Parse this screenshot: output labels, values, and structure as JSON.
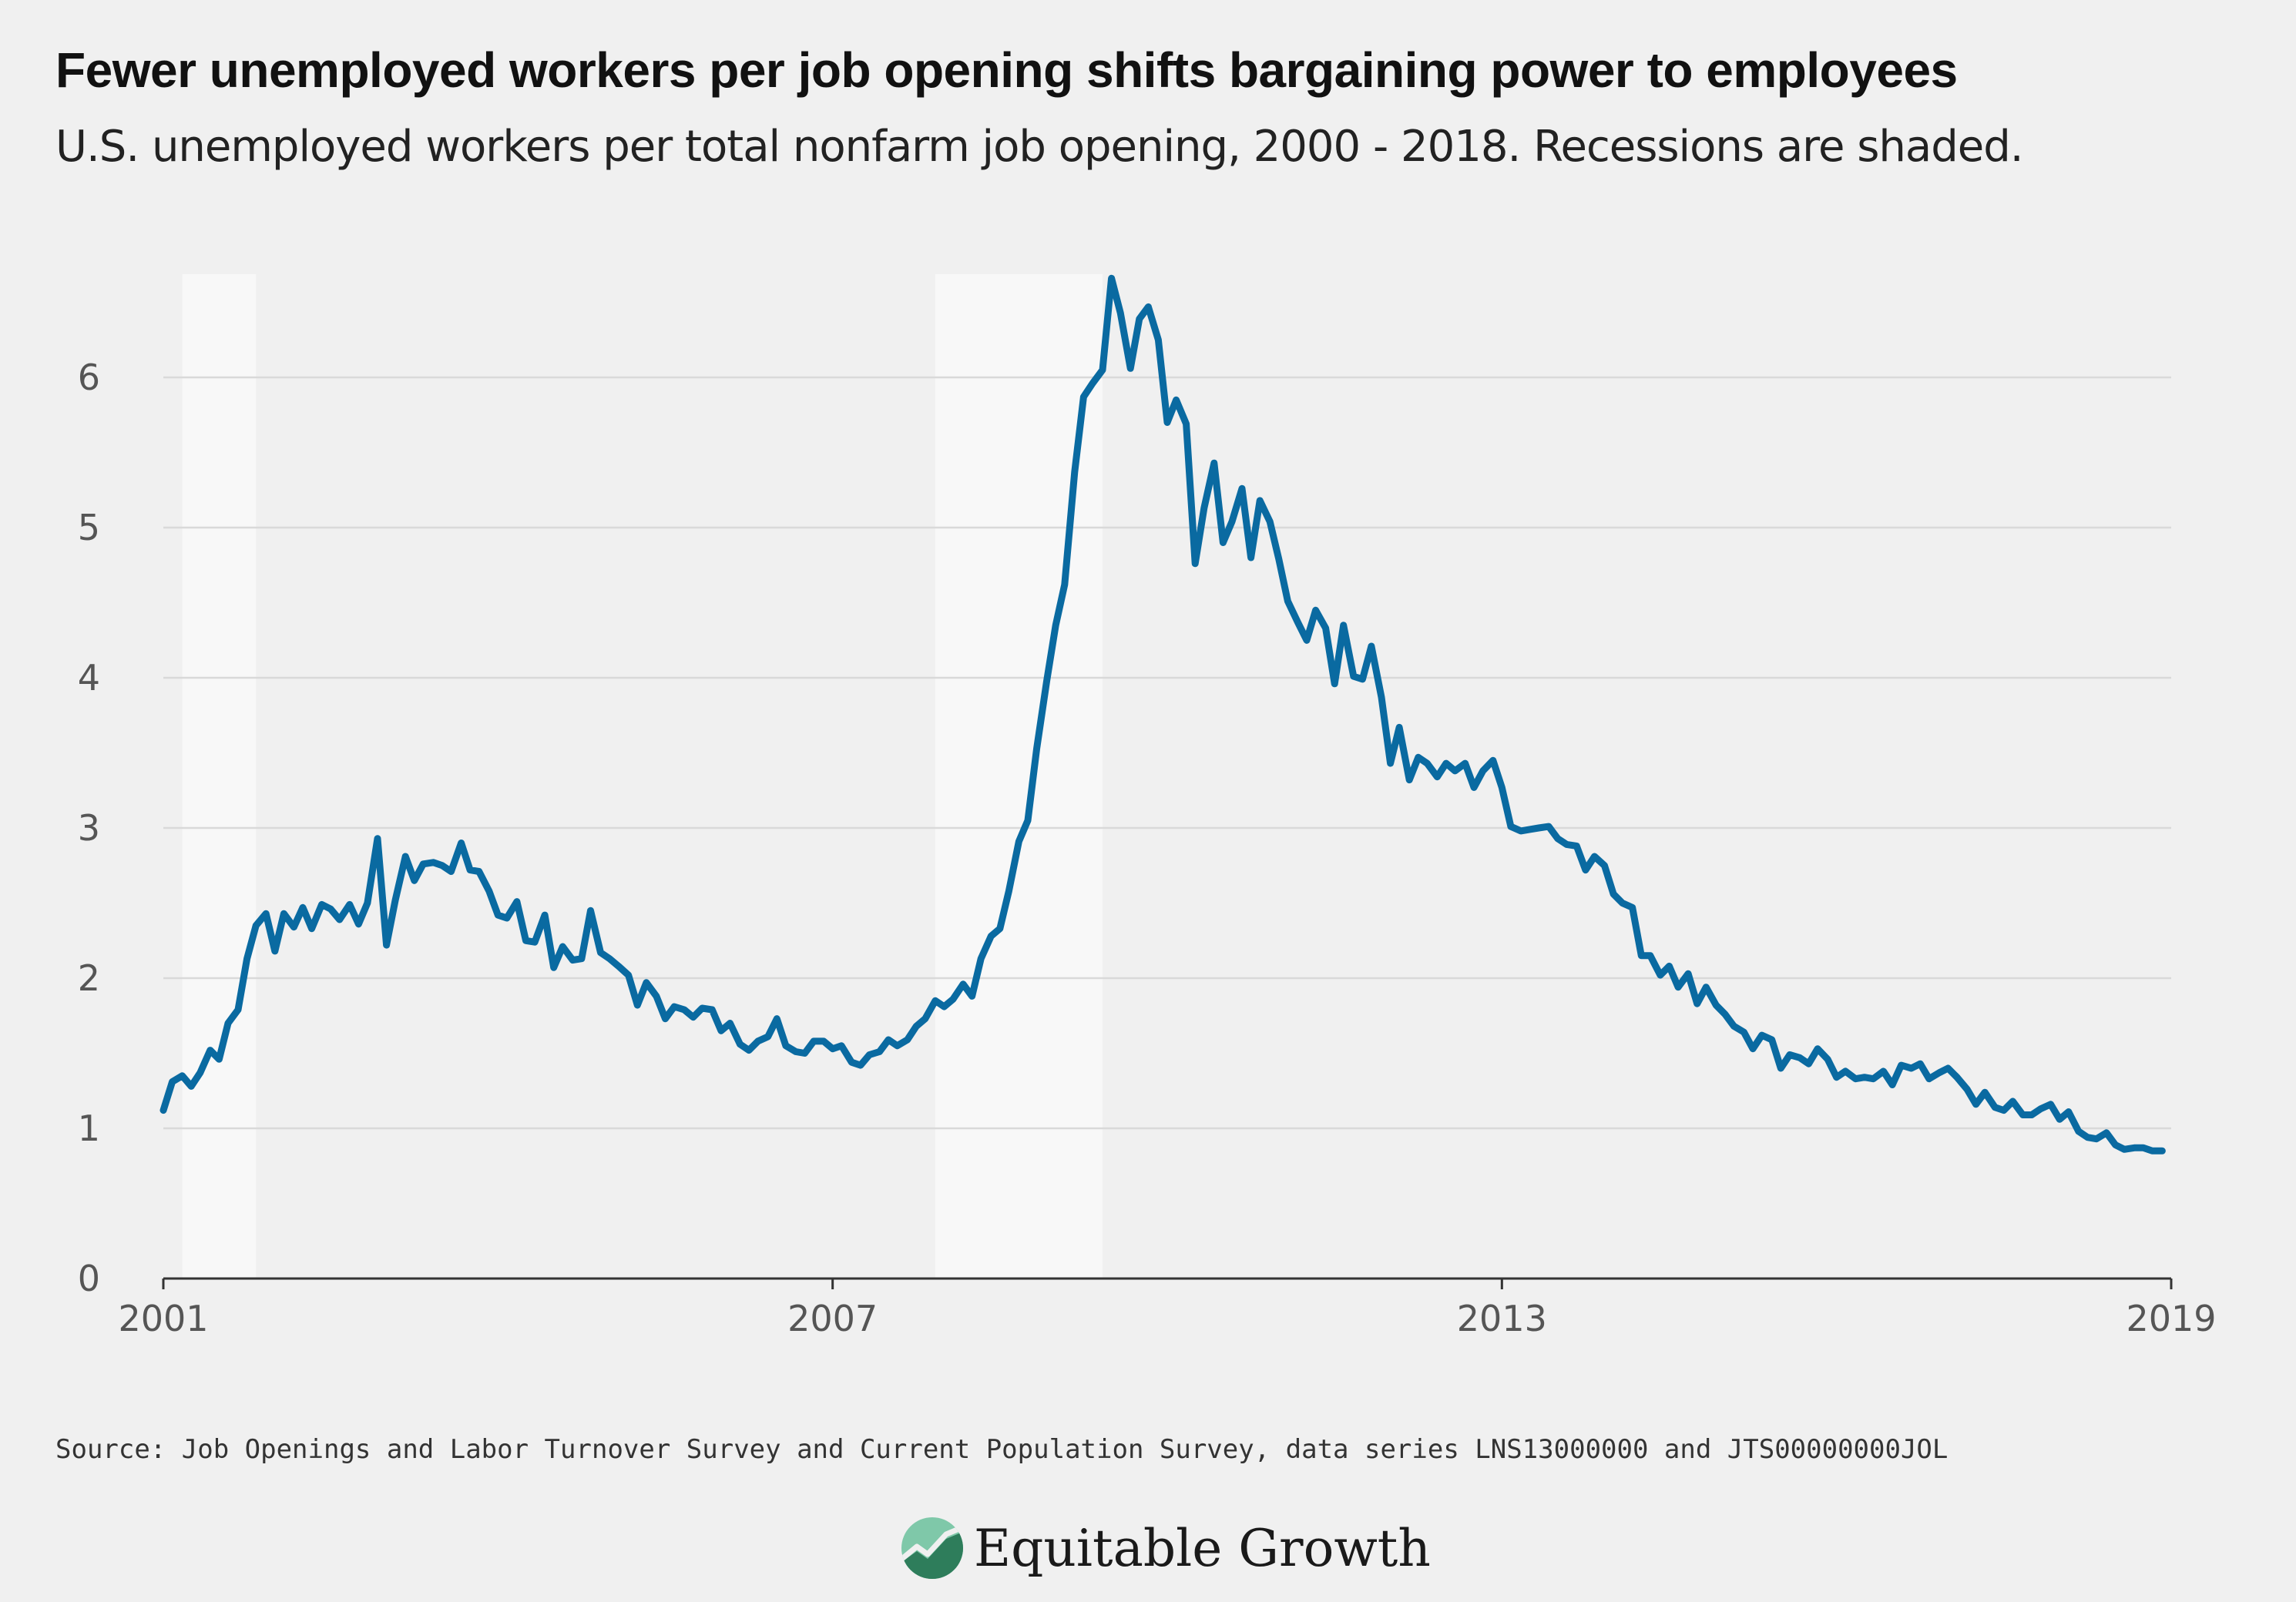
{
  "header": {
    "title": "Fewer unemployed workers per job opening shifts bargaining power to employees",
    "subtitle": "U.S. unemployed workers per total nonfarm job opening, 2000 - 2018. Recessions are shaded."
  },
  "footer": {
    "source": "Source: Job Openings and Labor Turnover Survey and Current Population Survey, data series LNS13000000 and JTS00000000JOL",
    "brand": "Equitable Growth"
  },
  "colors": {
    "line": "#0a6aa1",
    "recession": "#f8f8f8",
    "grid": "#d9d9d9",
    "background": "#f0f0f0",
    "logo_dark": "#2e7d5b",
    "logo_light": "#7fc8a9"
  },
  "chart_data": {
    "type": "line",
    "title": "Fewer unemployed workers per job opening shifts bargaining power to employees",
    "subtitle": "U.S. unemployed workers per total nonfarm job opening, 2000 - 2018. Recessions are shaded.",
    "xlabel": "",
    "ylabel": "",
    "xlim": [
      2001,
      2019
    ],
    "ylim": [
      0,
      6.7
    ],
    "x_ticks": [
      2001,
      2007,
      2013,
      2019
    ],
    "x_tick_labels": [
      "2001",
      "2007",
      "2013",
      "2019"
    ],
    "y_ticks": [
      0,
      1,
      2,
      3,
      4,
      5,
      6
    ],
    "y_tick_labels": [
      "0",
      "1",
      "2",
      "3",
      "4",
      "5",
      "6"
    ],
    "grid": true,
    "recessions": [
      [
        2001.17,
        2001.83
      ],
      [
        2007.92,
        2009.42
      ]
    ],
    "series": [
      {
        "x": [
          2001.0,
          2001.08,
          2001.17,
          2001.25,
          2001.33,
          2001.42,
          2001.5,
          2001.58,
          2001.67,
          2001.75,
          2001.83,
          2001.92,
          2002.0,
          2002.08,
          2002.17,
          2002.25,
          2002.33,
          2002.42,
          2002.5,
          2002.58,
          2002.67,
          2002.75,
          2002.83,
          2002.92,
          2003.0,
          2003.08,
          2003.17,
          2003.25,
          2003.33,
          2003.42,
          2003.5,
          2003.58,
          2003.67,
          2003.75,
          2003.83,
          2003.92,
          2004.0,
          2004.08,
          2004.17,
          2004.25,
          2004.33,
          2004.42,
          2004.5,
          2004.58,
          2004.67,
          2004.75,
          2004.83,
          2004.92,
          2005.0,
          2005.08,
          2005.17,
          2005.25,
          2005.33,
          2005.42,
          2005.5,
          2005.58,
          2005.67,
          2005.75,
          2005.83,
          2005.92,
          2006.0,
          2006.08,
          2006.17,
          2006.25,
          2006.33,
          2006.42,
          2006.5,
          2006.58,
          2006.67,
          2006.75,
          2006.83,
          2006.92,
          2007.0,
          2007.08,
          2007.17,
          2007.25,
          2007.33,
          2007.42,
          2007.5,
          2007.58,
          2007.67,
          2007.75,
          2007.83,
          2007.92,
          2008.0,
          2008.08,
          2008.17,
          2008.25,
          2008.33,
          2008.42,
          2008.5,
          2008.58,
          2008.67,
          2008.75,
          2008.83,
          2008.92,
          2009.0,
          2009.08,
          2009.17,
          2009.25,
          2009.33,
          2009.42,
          2009.5,
          2009.58,
          2009.67,
          2009.75,
          2009.83,
          2009.92,
          2010.0,
          2010.08,
          2010.17,
          2010.25,
          2010.33,
          2010.42,
          2010.5,
          2010.58,
          2010.67,
          2010.75,
          2010.83,
          2010.92,
          2011.0,
          2011.08,
          2011.17,
          2011.25,
          2011.33,
          2011.42,
          2011.5,
          2011.58,
          2011.67,
          2011.75,
          2011.83,
          2011.92,
          2012.0,
          2012.08,
          2012.17,
          2012.25,
          2012.33,
          2012.42,
          2012.5,
          2012.58,
          2012.67,
          2012.75,
          2012.83,
          2012.92,
          2013.0,
          2013.08,
          2013.17,
          2013.25,
          2013.33,
          2013.42,
          2013.5,
          2013.58,
          2013.67,
          2013.75,
          2013.83,
          2013.92,
          2014.0,
          2014.08,
          2014.17,
          2014.25,
          2014.33,
          2014.42,
          2014.5,
          2014.58,
          2014.67,
          2014.75,
          2014.83,
          2014.92,
          2015.0,
          2015.08,
          2015.17,
          2015.25,
          2015.33,
          2015.42,
          2015.5,
          2015.58,
          2015.67,
          2015.75,
          2015.83,
          2015.92,
          2016.0,
          2016.08,
          2016.17,
          2016.25,
          2016.33,
          2016.42,
          2016.5,
          2016.58,
          2016.67,
          2016.75,
          2016.83,
          2016.92,
          2017.0,
          2017.08,
          2017.17,
          2017.25,
          2017.33,
          2017.42,
          2017.5,
          2017.58,
          2017.67,
          2017.75,
          2017.83,
          2017.92,
          2018.0,
          2018.08,
          2018.17,
          2018.25,
          2018.33,
          2018.42,
          2018.5,
          2018.58,
          2018.67,
          2018.75,
          2018.83,
          2018.92
        ],
        "y": [
          1.12,
          1.31,
          1.35,
          1.28,
          1.37,
          1.52,
          1.46,
          1.7,
          1.79,
          2.13,
          2.35,
          2.43,
          2.18,
          2.43,
          2.34,
          2.47,
          2.33,
          2.49,
          2.46,
          2.39,
          2.49,
          2.36,
          2.5,
          2.93,
          2.22,
          2.52,
          2.81,
          2.65,
          2.76,
          2.77,
          2.75,
          2.71,
          2.9,
          2.72,
          2.71,
          2.58,
          2.42,
          2.4,
          2.51,
          2.25,
          2.24,
          2.42,
          2.07,
          2.21,
          2.12,
          2.13,
          2.45,
          2.17,
          2.13,
          2.08,
          2.02,
          1.82,
          1.97,
          1.88,
          1.73,
          1.81,
          1.79,
          1.74,
          1.8,
          1.79,
          1.65,
          1.7,
          1.56,
          1.52,
          1.58,
          1.61,
          1.73,
          1.55,
          1.51,
          1.5,
          1.58,
          1.58,
          1.53,
          1.55,
          1.44,
          1.42,
          1.49,
          1.51,
          1.59,
          1.55,
          1.59,
          1.68,
          1.73,
          1.85,
          1.81,
          1.86,
          1.96,
          1.88,
          2.13,
          2.28,
          2.33,
          2.58,
          2.91,
          3.05,
          3.53,
          3.98,
          4.35,
          4.62,
          5.37,
          5.87,
          5.96,
          6.05,
          6.66,
          6.43,
          6.06,
          6.39,
          6.47,
          6.25,
          5.7,
          5.85,
          5.69,
          4.76,
          5.13,
          5.43,
          4.9,
          5.04,
          5.26,
          4.8,
          5.18,
          5.04,
          4.79,
          4.51,
          4.37,
          4.25,
          4.45,
          4.33,
          3.96,
          4.35,
          4.01,
          3.99,
          4.21,
          3.87,
          3.43,
          3.67,
          3.32,
          3.47,
          3.43,
          3.34,
          3.43,
          3.38,
          3.43,
          3.27,
          3.38,
          3.45,
          3.27,
          3.01,
          2.98,
          2.99,
          3.0,
          3.01,
          2.93,
          2.89,
          2.88,
          2.72,
          2.81,
          2.75,
          2.56,
          2.5,
          2.47,
          2.15,
          2.15,
          2.02,
          2.08,
          1.94,
          2.03,
          1.83,
          1.94,
          1.82,
          1.76,
          1.68,
          1.64,
          1.53,
          1.62,
          1.59,
          1.4,
          1.49,
          1.47,
          1.43,
          1.53,
          1.46,
          1.34,
          1.38,
          1.33,
          1.34,
          1.33,
          1.38,
          1.29,
          1.42,
          1.4,
          1.43,
          1.33,
          1.37,
          1.4,
          1.34,
          1.26,
          1.16,
          1.24,
          1.14,
          1.12,
          1.18,
          1.09,
          1.09,
          1.13,
          1.16,
          1.06,
          1.11,
          0.98,
          0.94,
          0.93,
          0.97,
          0.89,
          0.86,
          0.87,
          0.87,
          0.85,
          0.85
        ]
      }
    ]
  }
}
